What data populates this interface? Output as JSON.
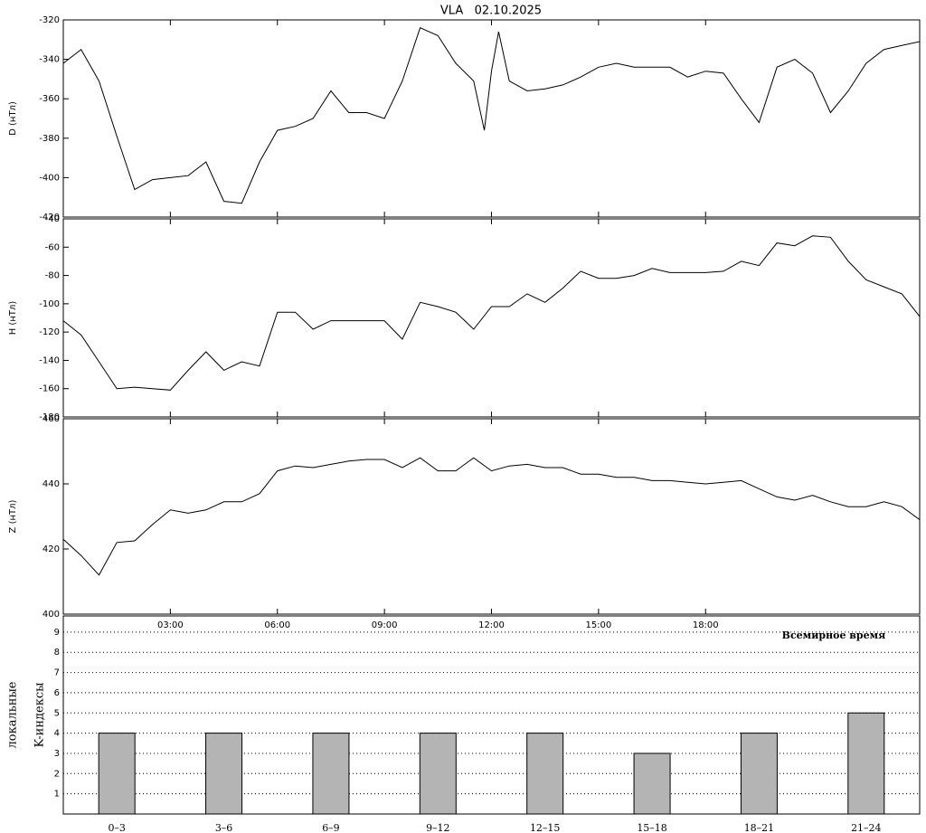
{
  "chart_data": [
    {
      "type": "line",
      "title": "VLA   02.10.2025",
      "ylabel": "D (нТл)",
      "color": "#000000",
      "xlim": [
        0,
        24
      ],
      "ylim": [
        -420,
        -320
      ],
      "yticks": [
        -420,
        -400,
        -380,
        -360,
        -340,
        -320
      ],
      "x": [
        0,
        0.5,
        1,
        1.5,
        2,
        2.5,
        3,
        3.5,
        4,
        4.5,
        5,
        5.5,
        6,
        6.5,
        7,
        7.5,
        8,
        8.5,
        9,
        9.5,
        10,
        10.5,
        11,
        11.5,
        11.8,
        12,
        12.2,
        12.5,
        13,
        13.5,
        14,
        14.5,
        15,
        15.5,
        16,
        16.5,
        17,
        17.5,
        18,
        18.5,
        19,
        19.5,
        20,
        20.5,
        21,
        21.5,
        22,
        22.5,
        23,
        23.5,
        24
      ],
      "values": [
        -342,
        -335,
        -351,
        -379,
        -406,
        -401,
        -400,
        -399,
        -392,
        -412,
        -413,
        -392,
        -376,
        -374,
        -370,
        -356,
        -367,
        -367,
        -370,
        -351,
        -324,
        -328,
        -342,
        -351,
        -376,
        -346,
        -326,
        -351,
        -356,
        -355,
        -353,
        -349,
        -344,
        -342,
        -344,
        -344,
        -344,
        -349,
        -346,
        -347,
        -360,
        -372,
        -344,
        -340,
        -347,
        -367,
        -356,
        -342,
        -335,
        -333,
        -331
      ]
    },
    {
      "type": "line",
      "ylabel": "H (нТл)",
      "color": "#000000",
      "xlim": [
        0,
        24
      ],
      "ylim": [
        -180,
        -40
      ],
      "yticks": [
        -180,
        -160,
        -140,
        -120,
        -100,
        -80,
        -60,
        -40
      ],
      "x": [
        0,
        0.5,
        1,
        1.5,
        2,
        2.5,
        3,
        3.5,
        4,
        4.5,
        5,
        5.5,
        6,
        6.5,
        7,
        7.5,
        8,
        8.5,
        9,
        9.5,
        10,
        10.5,
        11,
        11.5,
        12,
        12.5,
        13,
        13.5,
        14,
        14.5,
        15,
        15.5,
        16,
        16.5,
        17,
        17.5,
        18,
        18.5,
        19,
        19.5,
        20,
        20.5,
        21,
        21.5,
        22,
        22.5,
        23,
        23.5,
        24
      ],
      "values": [
        -112,
        -122,
        -141,
        -160,
        -159,
        -160,
        -161,
        -147,
        -134,
        -147,
        -141,
        -144,
        -106,
        -106,
        -118,
        -112,
        -112,
        -112,
        -112,
        -125,
        -99,
        -102,
        -106,
        -118,
        -102,
        -102,
        -93,
        -99,
        -89,
        -77,
        -82,
        -82,
        -80,
        -75,
        -78,
        -78,
        -78,
        -77,
        -70,
        -73,
        -57,
        -59,
        -52,
        -53,
        -70,
        -83,
        -88,
        -93,
        -109
      ]
    },
    {
      "type": "line",
      "ylabel": "Z (нТл)",
      "xlabel": "Всемирное время",
      "color": "#000000",
      "xlim": [
        0,
        24
      ],
      "ylim": [
        400,
        460
      ],
      "yticks": [
        400,
        420,
        440,
        460
      ],
      "xticks": [
        {
          "value": 3,
          "label": "03:00"
        },
        {
          "value": 6,
          "label": "06:00"
        },
        {
          "value": 9,
          "label": "09:00"
        },
        {
          "value": 12,
          "label": "12:00"
        },
        {
          "value": 15,
          "label": "15:00"
        },
        {
          "value": 18,
          "label": "18:00"
        }
      ],
      "x": [
        0,
        0.5,
        1,
        1.5,
        2,
        2.5,
        3,
        3.5,
        4,
        4.5,
        5,
        5.5,
        6,
        6.5,
        7,
        7.5,
        8,
        8.5,
        9,
        9.5,
        10,
        10.5,
        11,
        11.5,
        12,
        12.5,
        13,
        13.5,
        14,
        14.5,
        15,
        15.5,
        16,
        16.5,
        17,
        17.5,
        18,
        18.5,
        19,
        19.5,
        20,
        20.5,
        21,
        21.5,
        22,
        22.5,
        23,
        23.5,
        24
      ],
      "values": [
        423,
        418,
        412,
        422,
        422.5,
        427.5,
        432,
        431,
        432,
        434.5,
        434.5,
        437,
        444,
        445.5,
        445,
        446,
        447,
        447.5,
        447.5,
        445,
        448,
        444,
        444,
        448,
        444,
        445.5,
        446,
        445,
        445,
        443,
        443,
        442,
        442,
        441,
        441,
        440.5,
        440,
        440.5,
        441,
        438.5,
        436,
        435,
        436.5,
        434.5,
        433,
        433,
        434.5,
        433,
        429
      ]
    },
    {
      "type": "bar",
      "ylabel": [
        "локальные",
        "K-индексы"
      ],
      "color": "#b4b4b4",
      "grid": true,
      "ylim": [
        0,
        9.8
      ],
      "yticks": [
        1,
        2,
        3,
        4,
        5,
        6,
        7,
        8,
        9
      ],
      "categories": [
        "0–3",
        "3–6",
        "6–9",
        "9–12",
        "12–15",
        "15–18",
        "18–21",
        "21–24"
      ],
      "values": [
        4,
        4,
        4,
        4,
        4,
        3,
        4,
        5
      ]
    }
  ]
}
